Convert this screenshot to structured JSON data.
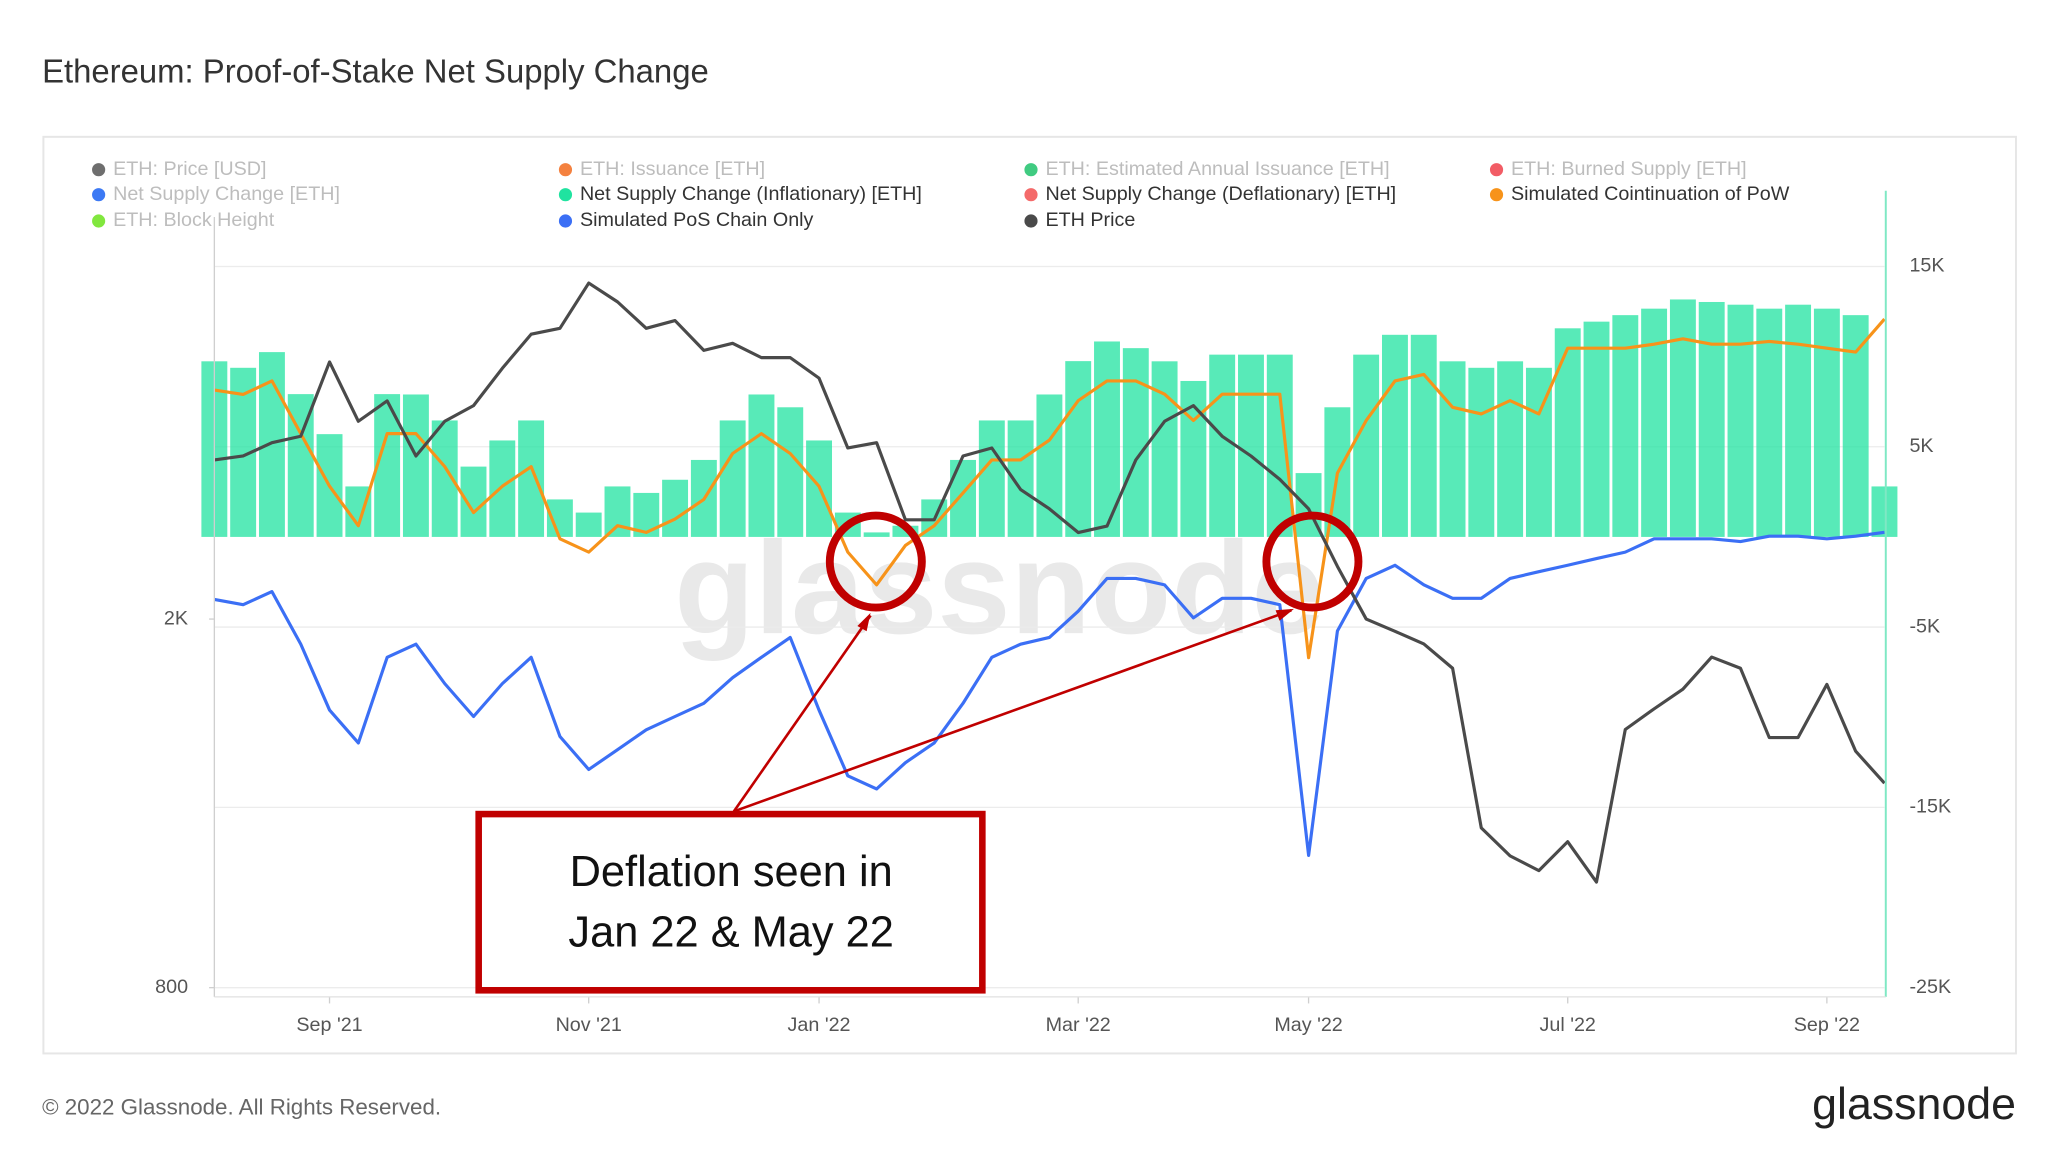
{
  "chart_data": {
    "type": "combo",
    "title": "Ethereum: Proof-of-Stake Net Supply Change",
    "footer": "© 2022 Glassnode. All Rights Reserved.",
    "logo": "glassnode",
    "watermark": "glassnode",
    "annotation": [
      "Deflation seen in",
      "Jan 22 & May 22"
    ],
    "categories": [
      null,
      null,
      null,
      null,
      "Sep '21",
      null,
      null,
      null,
      null,
      null,
      null,
      null,
      null,
      "Nov '21",
      null,
      null,
      null,
      null,
      null,
      null,
      null,
      "Jan '22",
      null,
      null,
      null,
      null,
      null,
      null,
      null,
      null,
      "Mar '22",
      null,
      null,
      null,
      null,
      null,
      null,
      null,
      "May '22",
      null,
      null,
      null,
      null,
      null,
      null,
      null,
      null,
      "Jul '22",
      null,
      null,
      null,
      null,
      null,
      null,
      null,
      null,
      "Sep '22",
      null,
      null
    ],
    "ylim": [
      800,
      5800
    ],
    "yscale": "log",
    "yticks": [
      800,
      {
        "value": 2000,
        "label": "2K"
      }
    ],
    "y2lim": [
      -25000,
      19200
    ],
    "y2ticks": [
      {
        "value": -25000,
        "label": "-25K"
      },
      {
        "value": -15000,
        "label": "-15K"
      },
      {
        "value": -5000,
        "label": "-5K"
      },
      {
        "value": 5000,
        "label": "5K"
      },
      {
        "value": 15000,
        "label": "15K"
      }
    ],
    "grid": true,
    "legend": "top",
    "series": [
      {
        "name": "ETH: Price [USD]",
        "color": "#555555",
        "faded": true
      },
      {
        "name": "ETH: Issuance [ETH]",
        "color": "#f26b1d",
        "faded": true
      },
      {
        "name": "ETH: Estimated Annual Issuance [ETH]",
        "color": "#1ec26b",
        "faded": true
      },
      {
        "name": "ETH: Burned Supply [ETH]",
        "color": "#f0404a",
        "faded": true
      },
      {
        "name": "Net Supply Change [ETH]",
        "color": "#1a62f2",
        "faded": true
      },
      {
        "name": "Net Supply Change (Inflationary) [ETH]",
        "color": "#20e3a0",
        "type": "bar",
        "axis": "y2",
        "values": [
          9740,
          9380,
          10250,
          7920,
          5700,
          2800,
          7920,
          7900,
          6460,
          3900,
          5350,
          6460,
          2080,
          1350,
          2800,
          2440,
          3170,
          4270,
          6460,
          7900,
          7190,
          5350,
          1350,
          250,
          620,
          2080,
          4270,
          6460,
          6460,
          7900,
          9750,
          10840,
          10470,
          9740,
          8650,
          10110,
          10110,
          10110,
          3540,
          7190,
          10110,
          11210,
          11210,
          9740,
          9380,
          9740,
          9380,
          11570,
          11940,
          12300,
          12660,
          13170,
          13030,
          12880,
          12660,
          12880,
          12660,
          12300,
          2800
        ]
      },
      {
        "name": "Net Supply Change (Deflationary) [ETH]",
        "color": "#f46a6a"
      },
      {
        "name": "Simulated Cointinuation of PoW",
        "color": "#f7931a",
        "type": "line",
        "axis": "y2",
        "values": [
          8140,
          7900,
          8650,
          5730,
          2810,
          620,
          5730,
          5730,
          3900,
          1350,
          2810,
          3900,
          -110,
          -840,
          620,
          250,
          990,
          2080,
          4630,
          5730,
          4630,
          2810,
          -840,
          -2660,
          -470,
          620,
          2440,
          4270,
          4270,
          5370,
          7560,
          8650,
          8650,
          7920,
          6460,
          7920,
          7920,
          7920,
          -6700,
          3540,
          6460,
          8650,
          9010,
          7190,
          6820,
          7560,
          6820,
          10470,
          10470,
          10470,
          10690,
          10990,
          10690,
          10690,
          10840,
          10690,
          10470,
          10250,
          12080
        ]
      },
      {
        "name": "ETH: Block Height",
        "color": "#6be31c",
        "faded": true
      },
      {
        "name": "Simulated PoS Chain Only",
        "color": "#3b6ff5",
        "type": "line",
        "axis": "y2",
        "values": [
          -3470,
          -3760,
          -3030,
          -5950,
          -9600,
          -11430,
          -6680,
          -5950,
          -8140,
          -9960,
          -8140,
          -6680,
          -11070,
          -12900,
          -11800,
          -10700,
          -9960,
          -9230,
          -7810,
          -6680,
          -5580,
          -9600,
          -13250,
          -13980,
          -12520,
          -11430,
          -9230,
          -6680,
          -5950,
          -5580,
          -4120,
          -2300,
          -2300,
          -2660,
          -4490,
          -3400,
          -3400,
          -3760,
          -17660,
          -5220,
          -2300,
          -1570,
          -2660,
          -3400,
          -3400,
          -2300,
          -1930,
          -1570,
          -1200,
          -840,
          -110,
          -110,
          -110,
          -260,
          40,
          40,
          -110,
          40,
          260
        ]
      },
      {
        "name": "ETH Price",
        "color": "#4a4a4a",
        "type": "line",
        "axis": "y",
        "values": [
          2970,
          3000,
          3100,
          3150,
          3790,
          3270,
          3440,
          3000,
          3270,
          3400,
          3730,
          4060,
          4120,
          4610,
          4400,
          4120,
          4200,
          3900,
          3970,
          3830,
          3830,
          3640,
          3060,
          3100,
          2560,
          2560,
          3000,
          3060,
          2760,
          2630,
          2480,
          2520,
          2970,
          3270,
          3400,
          3150,
          3000,
          2830,
          2630,
          2280,
          2000,
          1940,
          1880,
          1770,
          1190,
          1110,
          1070,
          1150,
          1040,
          1520,
          1600,
          1680,
          1820,
          1770,
          1490,
          1490,
          1700,
          1440,
          1330
        ]
      }
    ]
  }
}
